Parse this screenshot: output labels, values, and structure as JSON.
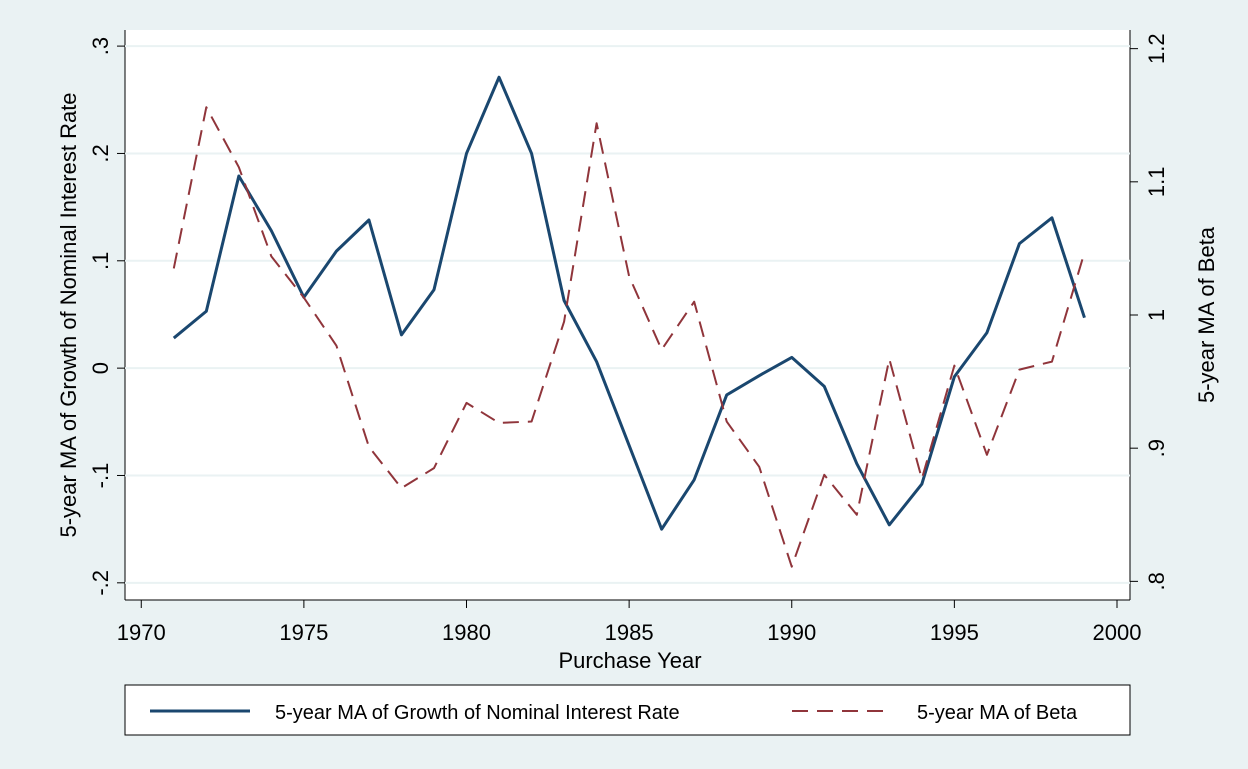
{
  "chart_data": {
    "type": "line",
    "x_label": "Purchase Year",
    "y_label": "5-year MA of Growth of Nominal Interest Rate",
    "y2_label": "5-year MA of Beta",
    "x": [
      1971,
      1972,
      1973,
      1974,
      1975,
      1976,
      1977,
      1978,
      1979,
      1980,
      1981,
      1982,
      1983,
      1984,
      1985,
      1986,
      1987,
      1988,
      1989,
      1990,
      1991,
      1992,
      1993,
      1994,
      1995,
      1996,
      1997,
      1998,
      1999
    ],
    "series": [
      {
        "name": "5-year MA of Growth of Nominal Interest Rate",
        "color": "#1a476f",
        "line_style": "solid",
        "axis": "y",
        "values": [
          0.028,
          0.053,
          0.179,
          0.128,
          0.066,
          0.109,
          0.138,
          0.031,
          0.073,
          0.2,
          0.271,
          0.2,
          0.063,
          0.006,
          -0.072,
          -0.15,
          -0.104,
          -0.025,
          -0.007,
          0.01,
          -0.017,
          -0.089,
          -0.146,
          -0.108,
          -0.008,
          0.033,
          0.116,
          0.14,
          0.047
        ]
      },
      {
        "name": "5-year MA of Beta",
        "color": "#90353b",
        "line_style": "dashed",
        "axis": "y2",
        "values": [
          1.035,
          1.156,
          1.111,
          1.044,
          1.013,
          0.977,
          0.901,
          0.87,
          0.885,
          0.934,
          0.919,
          0.92,
          0.995,
          1.144,
          1.029,
          0.974,
          1.01,
          0.92,
          0.886,
          0.811,
          0.88,
          0.85,
          0.967,
          0.877,
          0.962,
          0.895,
          0.959,
          0.965,
          1.047
        ]
      }
    ],
    "xlim": [
      1969.5,
      2000.4
    ],
    "xticks": [
      1970,
      1975,
      1980,
      1985,
      1990,
      1995,
      2000
    ],
    "ylim": [
      -0.216,
      0.315
    ],
    "yticks": [
      {
        "value": -0.2,
        "label": "-.2"
      },
      {
        "value": -0.1,
        "label": "-.1"
      },
      0,
      {
        "value": 0.1,
        "label": ".1"
      },
      {
        "value": 0.2,
        "label": ".2"
      },
      {
        "value": 0.3,
        "label": ".3"
      }
    ],
    "y2lim": [
      0.786,
      1.214
    ],
    "y2ticks": [
      {
        "value": 0.8,
        "label": ".8"
      },
      {
        "value": 0.9,
        "label": ".9"
      },
      1,
      1.1,
      1.2
    ],
    "grid": true,
    "legend": "bottom"
  }
}
